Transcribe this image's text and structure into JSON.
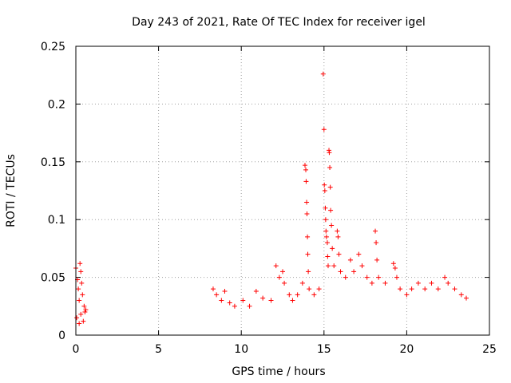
{
  "chart_data": {
    "type": "scatter",
    "title": "Day 243 of 2021, Rate Of TEC Index for receiver igel",
    "xlabel": "GPS time / hours",
    "ylabel": "ROTI / TECUs",
    "xlim": [
      0,
      25
    ],
    "ylim": [
      0,
      0.25
    ],
    "x_ticks": [
      0,
      5,
      10,
      15,
      20,
      25
    ],
    "x_tick_labels": [
      "0",
      "5",
      "10",
      "15",
      "20",
      "25"
    ],
    "y_ticks": [
      0,
      0.05,
      0.1,
      0.15,
      0.2,
      0.25
    ],
    "y_tick_labels": [
      "0",
      "0.05",
      "0.1",
      "0.15",
      "0.2",
      "0.25"
    ],
    "grid": true,
    "marker": "+",
    "color": "#ff0000",
    "series": [
      {
        "points": [
          [
            0.0,
            0.058
          ],
          [
            0.1,
            0.048
          ],
          [
            0.15,
            0.04
          ],
          [
            0.2,
            0.03
          ],
          [
            0.25,
            0.062
          ],
          [
            0.3,
            0.055
          ],
          [
            0.35,
            0.045
          ],
          [
            0.4,
            0.035
          ],
          [
            0.5,
            0.025
          ],
          [
            0.55,
            0.02
          ],
          [
            0.05,
            0.015
          ],
          [
            0.2,
            0.01
          ],
          [
            0.3,
            0.018
          ],
          [
            0.45,
            0.012
          ],
          [
            0.6,
            0.022
          ],
          [
            8.3,
            0.04
          ],
          [
            8.5,
            0.035
          ],
          [
            8.8,
            0.03
          ],
          [
            9.0,
            0.038
          ],
          [
            9.3,
            0.028
          ],
          [
            9.6,
            0.025
          ],
          [
            10.1,
            0.03
          ],
          [
            10.5,
            0.025
          ],
          [
            10.9,
            0.038
          ],
          [
            11.3,
            0.032
          ],
          [
            11.8,
            0.03
          ],
          [
            12.1,
            0.06
          ],
          [
            12.3,
            0.05
          ],
          [
            12.5,
            0.055
          ],
          [
            12.6,
            0.045
          ],
          [
            12.9,
            0.035
          ],
          [
            13.1,
            0.03
          ],
          [
            13.4,
            0.035
          ],
          [
            13.7,
            0.045
          ],
          [
            13.85,
            0.147
          ],
          [
            13.9,
            0.143
          ],
          [
            13.92,
            0.133
          ],
          [
            13.95,
            0.115
          ],
          [
            13.97,
            0.105
          ],
          [
            14.0,
            0.085
          ],
          [
            14.02,
            0.07
          ],
          [
            14.05,
            0.055
          ],
          [
            14.1,
            0.04
          ],
          [
            14.4,
            0.035
          ],
          [
            14.7,
            0.04
          ],
          [
            14.95,
            0.226
          ],
          [
            15.0,
            0.178
          ],
          [
            15.02,
            0.13
          ],
          [
            15.05,
            0.125
          ],
          [
            15.08,
            0.11
          ],
          [
            15.1,
            0.1
          ],
          [
            15.12,
            0.09
          ],
          [
            15.15,
            0.085
          ],
          [
            15.2,
            0.08
          ],
          [
            15.22,
            0.068
          ],
          [
            15.25,
            0.06
          ],
          [
            15.3,
            0.16
          ],
          [
            15.32,
            0.158
          ],
          [
            15.35,
            0.145
          ],
          [
            15.38,
            0.128
          ],
          [
            15.4,
            0.108
          ],
          [
            15.45,
            0.095
          ],
          [
            15.5,
            0.075
          ],
          [
            15.6,
            0.06
          ],
          [
            15.8,
            0.09
          ],
          [
            15.85,
            0.085
          ],
          [
            15.9,
            0.07
          ],
          [
            16.0,
            0.055
          ],
          [
            16.3,
            0.05
          ],
          [
            16.6,
            0.065
          ],
          [
            16.8,
            0.055
          ],
          [
            17.1,
            0.07
          ],
          [
            17.3,
            0.06
          ],
          [
            17.6,
            0.05
          ],
          [
            17.9,
            0.045
          ],
          [
            18.1,
            0.09
          ],
          [
            18.15,
            0.08
          ],
          [
            18.2,
            0.065
          ],
          [
            18.3,
            0.05
          ],
          [
            18.7,
            0.045
          ],
          [
            19.2,
            0.062
          ],
          [
            19.3,
            0.058
          ],
          [
            19.4,
            0.05
          ],
          [
            19.6,
            0.04
          ],
          [
            20.0,
            0.035
          ],
          [
            20.3,
            0.04
          ],
          [
            20.7,
            0.045
          ],
          [
            21.1,
            0.04
          ],
          [
            21.5,
            0.045
          ],
          [
            21.9,
            0.04
          ],
          [
            22.3,
            0.05
          ],
          [
            22.5,
            0.045
          ],
          [
            22.9,
            0.04
          ],
          [
            23.3,
            0.035
          ],
          [
            23.6,
            0.032
          ]
        ]
      }
    ]
  }
}
